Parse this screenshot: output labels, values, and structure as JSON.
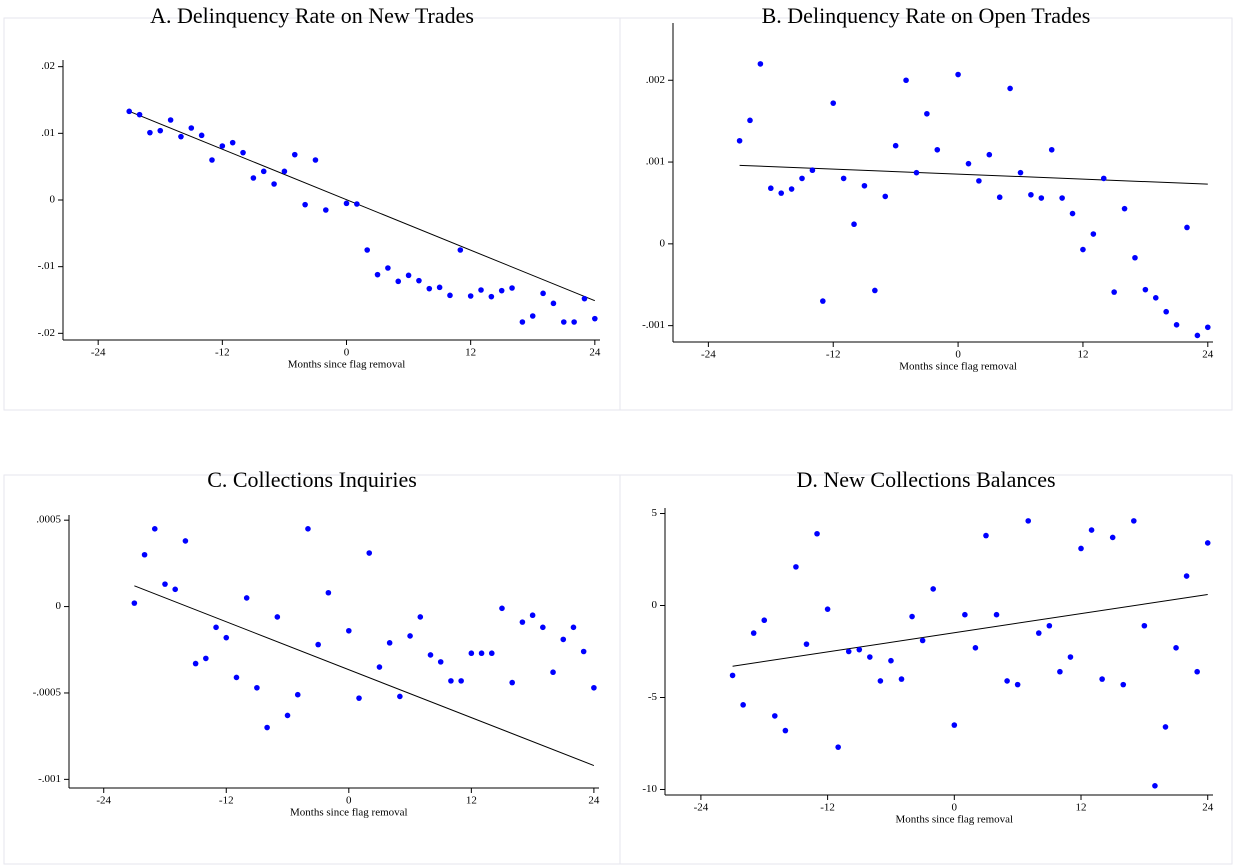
{
  "chart_data": [
    {
      "type": "scatter",
      "title": "A. Delinquency Rate on New Trades",
      "x_label": "Months since flag removal",
      "color": "#0000ff",
      "x": [
        -21,
        -20,
        -19,
        -18,
        -17,
        -16,
        -15,
        -14,
        -13,
        -12,
        -11,
        -10,
        -9,
        -8,
        -7,
        -6,
        -5,
        -4,
        -3,
        -2,
        0,
        1,
        2,
        3,
        4,
        5,
        6,
        7,
        8,
        9,
        10,
        11,
        12,
        13,
        14,
        15,
        16,
        17,
        18,
        19,
        20,
        21,
        22,
        23,
        24
      ],
      "values": [
        0.0133,
        0.0128,
        0.0101,
        0.0104,
        0.012,
        0.0095,
        0.0108,
        0.0097,
        0.006,
        0.0081,
        0.0086,
        0.0071,
        0.0033,
        0.0043,
        0.0024,
        0.0043,
        0.0068,
        -0.0007,
        0.006,
        -0.0015,
        -0.0005,
        -0.0006,
        -0.0075,
        -0.0112,
        -0.0102,
        -0.0122,
        -0.0113,
        -0.0121,
        -0.0133,
        -0.0131,
        -0.0143,
        -0.0075,
        -0.0144,
        -0.0135,
        -0.0145,
        -0.0136,
        -0.0132,
        -0.0183,
        -0.0174,
        -0.014,
        -0.0155,
        -0.0183,
        -0.0183,
        -0.0148,
        -0.0178
      ],
      "fit": {
        "x": [
          -21,
          24
        ],
        "values": [
          0.0133,
          -0.0151
        ]
      },
      "xlim": [
        -27.4,
        24.5
      ],
      "xticks": [
        -24,
        -12,
        0,
        12,
        24
      ],
      "ylim": [
        -0.021,
        0.021
      ],
      "yticks": [
        {
          "value": 0.02,
          "label": ".02"
        },
        {
          "value": 0.01,
          "label": ".01"
        },
        0,
        {
          "value": -0.01,
          "label": "-.01"
        },
        {
          "value": -0.02,
          "label": "-.02"
        }
      ]
    },
    {
      "type": "scatter",
      "title": "B. Delinquency Rate on Open Trades",
      "x_label": "Months since flag removal",
      "color": "#0000ff",
      "x": [
        -21,
        -20,
        -19,
        -18,
        -17,
        -16,
        -15,
        -14,
        -13,
        -12,
        -11,
        -10,
        -9,
        -8,
        -7,
        -6,
        -5,
        -4,
        -3,
        -2,
        0,
        1,
        2,
        3,
        4,
        5,
        6,
        7,
        8,
        9,
        10,
        11,
        12,
        13,
        14,
        15,
        16,
        17,
        18,
        19,
        20,
        21,
        22,
        23,
        24
      ],
      "values": [
        0.00126,
        0.00151,
        0.0022,
        0.00068,
        0.00062,
        0.00067,
        0.0008,
        0.0009,
        -0.0007,
        0.00172,
        0.0008,
        0.00024,
        0.00071,
        -0.00057,
        0.00058,
        0.0012,
        0.002,
        0.00087,
        0.00159,
        0.00115,
        0.00207,
        0.00098,
        0.00077,
        0.00109,
        0.00057,
        0.0019,
        0.00087,
        0.0006,
        0.00056,
        0.00115,
        0.00056,
        0.00037,
        -7e-05,
        0.00012,
        0.0008,
        -0.00059,
        0.00043,
        -0.00017,
        -0.00056,
        -0.00066,
        -0.00083,
        -0.00099,
        0.0002,
        -0.00112,
        -0.00102
      ],
      "fit": {
        "x": [
          -21,
          24
        ],
        "values": [
          0.00096,
          0.00073
        ]
      },
      "xlim": [
        -27.4,
        24.5
      ],
      "xticks": [
        -24,
        -12,
        0,
        12,
        24
      ],
      "ylim": [
        -0.0012,
        0.0027
      ],
      "yticks": [
        {
          "value": 0.002,
          "label": ".002"
        },
        {
          "value": 0.001,
          "label": ".001"
        },
        0,
        {
          "value": -0.001,
          "label": "-.001"
        }
      ]
    },
    {
      "type": "scatter",
      "title": "C. Collections Inquiries",
      "x_label": "Months since flag removal",
      "color": "#0000ff",
      "x": [
        -21,
        -20,
        -19,
        -18,
        -17,
        -16,
        -15,
        -14,
        -13,
        -12,
        -11,
        -10,
        -9,
        -8,
        -7,
        -6,
        -5,
        -4,
        -3,
        -2,
        0,
        1,
        2,
        3,
        4,
        5,
        6,
        7,
        8,
        9,
        10,
        11,
        12,
        13,
        14,
        15,
        16,
        17,
        18,
        19,
        20,
        21,
        22,
        23,
        24
      ],
      "values": [
        2e-05,
        0.0003,
        0.00045,
        0.00013,
        0.0001,
        0.00038,
        -0.00033,
        -0.0003,
        -0.00012,
        -0.00018,
        -0.00041,
        5e-05,
        -0.00047,
        -0.0007,
        -6e-05,
        -0.00063,
        -0.00051,
        0.00045,
        -0.00022,
        8e-05,
        -0.00014,
        -0.00053,
        0.00031,
        -0.00035,
        -0.00021,
        -0.00052,
        -0.00017,
        -6e-05,
        -0.00028,
        -0.00032,
        -0.00043,
        -0.00043,
        -0.00027,
        -0.00027,
        -0.00027,
        -1e-05,
        -0.00044,
        -9e-05,
        -5e-05,
        -0.00012,
        -0.00038,
        -0.00019,
        -0.00012,
        -0.00026,
        -0.00047
      ],
      "fit": {
        "x": [
          -21,
          24
        ],
        "values": [
          0.00012,
          -0.00092
        ]
      },
      "xlim": [
        -27.4,
        24.5
      ],
      "xticks": [
        -24,
        -12,
        0,
        12,
        24
      ],
      "ylim": [
        -0.00105,
        0.00053
      ],
      "yticks": [
        {
          "value": 0.0005,
          "label": ".0005"
        },
        0,
        {
          "value": -0.0005,
          "label": "-.0005"
        },
        {
          "value": -0.001,
          "label": "-.001"
        }
      ]
    },
    {
      "type": "scatter",
      "title": "D. New Collections Balances",
      "x_label": "Months since flag removal",
      "color": "#0000ff",
      "x": [
        -21,
        -20,
        -19,
        -18,
        -17,
        -16,
        -15,
        -14,
        -13,
        -12,
        -11,
        -10,
        -9,
        -8,
        -7,
        -6,
        -5,
        -4,
        -3,
        -2,
        0,
        1,
        2,
        3,
        4,
        5,
        6,
        7,
        8,
        9,
        10,
        11,
        12,
        13,
        14,
        15,
        16,
        17,
        18,
        19,
        20,
        21,
        22,
        23,
        24
      ],
      "values": [
        -3.8,
        -5.4,
        -1.5,
        -0.8,
        -6.0,
        -6.8,
        2.1,
        -2.1,
        3.9,
        -0.2,
        -7.7,
        -2.5,
        -2.4,
        -2.8,
        -4.1,
        -3.0,
        -4.0,
        -0.6,
        -1.9,
        0.9,
        -6.5,
        -0.5,
        -2.3,
        3.8,
        -0.5,
        -4.1,
        -4.3,
        4.6,
        -1.5,
        -1.1,
        -3.6,
        -2.8,
        3.1,
        4.1,
        -4.0,
        3.7,
        -4.3,
        4.6,
        -1.1,
        -9.8,
        -6.6,
        -2.3,
        1.6,
        -3.6,
        3.4
      ],
      "fit": {
        "x": [
          -21,
          24
        ],
        "values": [
          -3.3,
          0.6
        ]
      },
      "xlim": [
        -27.4,
        24.5
      ],
      "xticks": [
        -24,
        -12,
        0,
        12,
        24
      ],
      "ylim": [
        -10.3,
        5.3
      ],
      "yticks": [
        5,
        0,
        -5,
        -10
      ]
    }
  ]
}
